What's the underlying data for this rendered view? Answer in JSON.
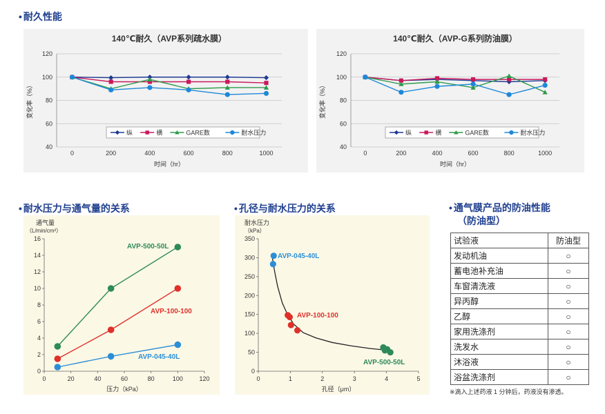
{
  "sections": {
    "durability": "耐久性能",
    "pressure_vs_air": "耐水压力与通气量的关系",
    "pore_vs_pressure": "孔径与耐水压力的关系",
    "oil_title_line1": "通气膜产品的防油性能",
    "oil_title_line2": "（防油型）"
  },
  "chart_data": [
    {
      "type": "line",
      "title": "140℃耐久（AVP系列疏水膜）",
      "xlabel": "时间（hr）",
      "ylabel": "变化率（%）",
      "x": [
        0,
        200,
        400,
        600,
        800,
        1000
      ],
      "xlim": [
        -80,
        1080
      ],
      "ylim": [
        40,
        120
      ],
      "yticks": [
        40,
        60,
        80,
        100,
        120
      ],
      "grid": "horizontal",
      "legend_position": "bottom",
      "series": [
        {
          "name": "纵",
          "color": "#1f3a93",
          "marker": "diamond",
          "values": [
            100,
            99.5,
            100,
            100,
            100,
            99.5
          ]
        },
        {
          "name": "横",
          "color": "#c8195b",
          "marker": "square",
          "values": [
            100,
            96,
            96,
            96,
            96,
            95
          ]
        },
        {
          "name": "GARE数",
          "color": "#2e9a4b",
          "marker": "triangle",
          "values": [
            100,
            90,
            98,
            90,
            91,
            91
          ]
        },
        {
          "name": "耐水压力",
          "color": "#1e88d8",
          "marker": "circle",
          "values": [
            100,
            89,
            91,
            89,
            85,
            86
          ]
        }
      ]
    },
    {
      "type": "line",
      "title": "140℃耐久（AVP-G系列防油膜）",
      "xlabel": "时间（hr）",
      "ylabel": "变化率（%）",
      "x": [
        0,
        200,
        400,
        600,
        800,
        1000
      ],
      "xlim": [
        -80,
        1080
      ],
      "ylim": [
        40,
        120
      ],
      "yticks": [
        40,
        60,
        80,
        100,
        120
      ],
      "grid": "horizontal",
      "legend_position": "bottom",
      "series": [
        {
          "name": "纵",
          "color": "#1f3a93",
          "marker": "diamond",
          "values": [
            100,
            97,
            98,
            97,
            96,
            97
          ]
        },
        {
          "name": "横",
          "color": "#c8195b",
          "marker": "square",
          "values": [
            100,
            97,
            99,
            98,
            98,
            98
          ]
        },
        {
          "name": "GARE数",
          "color": "#2e9a4b",
          "marker": "triangle",
          "values": [
            100,
            94,
            96,
            91,
            101,
            87
          ]
        },
        {
          "name": "耐水压力",
          "color": "#1e88d8",
          "marker": "circle",
          "values": [
            100,
            87,
            92,
            94,
            85,
            93
          ]
        }
      ]
    },
    {
      "type": "line",
      "title": "",
      "xlabel": "压力（kPa）",
      "ylabel_line1": "通气量",
      "ylabel_line2": "（L/min/cm²）",
      "xlim": [
        0,
        120
      ],
      "ylim": [
        0,
        16
      ],
      "xticks": [
        0,
        20,
        40,
        60,
        80,
        100,
        120
      ],
      "yticks": [
        0,
        2,
        4,
        6,
        8,
        10,
        12,
        14,
        16
      ],
      "series": [
        {
          "name": "AVP-500-50L",
          "color": "#2e8a58",
          "x": [
            10,
            50,
            100
          ],
          "values": [
            3,
            10,
            15
          ]
        },
        {
          "name": "AVP-100-100",
          "color": "#e0302a",
          "x": [
            10,
            50,
            100
          ],
          "values": [
            1.5,
            5,
            10
          ]
        },
        {
          "name": "AVP-045-40L",
          "color": "#2c8fd6",
          "x": [
            10,
            50,
            100
          ],
          "values": [
            0.5,
            1.8,
            3.2
          ]
        }
      ]
    },
    {
      "type": "scatter",
      "title": "",
      "xlabel": "孔径（μm）",
      "ylabel_line1": "耐水压力",
      "ylabel_line2": "（kPa）",
      "xlim": [
        0,
        5
      ],
      "ylim": [
        0,
        350
      ],
      "xticks": [
        0,
        1,
        2,
        3,
        4,
        5
      ],
      "yticks": [
        0,
        50,
        100,
        150,
        200,
        250,
        300,
        350
      ],
      "trend_curve": {
        "x": [
          0.42,
          0.5,
          0.6,
          0.75,
          0.9,
          1.1,
          1.4,
          1.8,
          2.3,
          2.9,
          3.5,
          4.2
        ],
        "y": [
          310,
          268,
          225,
          180,
          152,
          125,
          102,
          88,
          76,
          67,
          60,
          54
        ]
      },
      "series": [
        {
          "name": "AVP-045-40L",
          "color": "#2c8fd6",
          "x": [
            0.48,
            0.46
          ],
          "values": [
            305,
            283
          ]
        },
        {
          "name": "AVP-100-100",
          "color": "#e0302a",
          "x": [
            0.92,
            0.98,
            1.02,
            1.22
          ],
          "values": [
            148,
            143,
            122,
            108
          ]
        },
        {
          "name": "AVP-500-50L",
          "color": "#2e8a58",
          "x": [
            3.9,
            3.95,
            4.02,
            4.12
          ],
          "values": [
            63,
            55,
            58,
            50
          ]
        }
      ]
    }
  ],
  "oil_table": {
    "headers": [
      "试验液",
      "防油型"
    ],
    "rows": [
      {
        "liquid": "发动机油",
        "result": "○"
      },
      {
        "liquid": "蓄电池补充油",
        "result": "○"
      },
      {
        "liquid": "车窗清洗液",
        "result": "○"
      },
      {
        "liquid": "异丙醇",
        "result": "○"
      },
      {
        "liquid": "乙醇",
        "result": "○"
      },
      {
        "liquid": "家用洗涤剂",
        "result": "○"
      },
      {
        "liquid": "洗发水",
        "result": "○"
      },
      {
        "liquid": "沐浴液",
        "result": "○"
      },
      {
        "liquid": "浴盆洗涤剂",
        "result": "○"
      }
    ],
    "footnote": "※滴入上述药液 1 分钟后，药液没有渗透。"
  }
}
